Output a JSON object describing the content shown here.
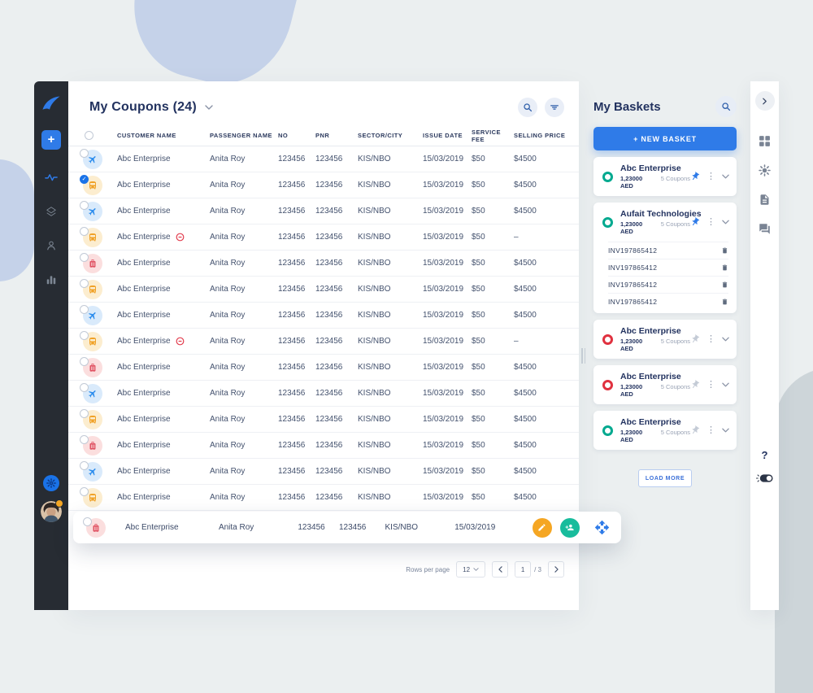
{
  "app": {
    "left_nav": {
      "icons": [
        "logo",
        "add-button",
        "activity-icon",
        "coupons-stack-icon",
        "profile-icon",
        "stats-icon",
        "settings-icon",
        "user-avatar"
      ]
    },
    "right_nav": {
      "icons": [
        "collapse-icon",
        "apps-grid-icon",
        "settings-gear-icon",
        "documents-icon",
        "chat-icon",
        "help-icon",
        "theme-toggle-icon"
      ]
    }
  },
  "colors": {
    "accent_blue": "#2f7be8",
    "teal_status": "#00a98f",
    "red_status": "#e0313f",
    "orange_action": "#f5a623",
    "teal_action": "#18bc9c",
    "dark_sidebar": "#272c33"
  },
  "coupons": {
    "title": "My Coupons (24)",
    "columns": [
      "CUSTOMER NAME",
      "PASSENGER NAME",
      "NO",
      "PNR",
      "SECTOR/CITY",
      "ISSUE DATE",
      "SERVICE FEE",
      "SELLING PRICE"
    ],
    "rows": [
      {
        "icon": "plane-icon",
        "checked": false,
        "blocked": false,
        "customer": "Abc Enterprise",
        "passenger": "Anita Roy",
        "no": "123456",
        "pnr": "123456",
        "sector": "KIS/NBO",
        "issue_date": "15/03/2019",
        "service_fee": "$50",
        "selling_price": "$4500"
      },
      {
        "icon": "bus-icon",
        "checked": true,
        "blocked": false,
        "customer": "Abc Enterprise",
        "passenger": "Anita Roy",
        "no": "123456",
        "pnr": "123456",
        "sector": "KIS/NBO",
        "issue_date": "15/03/2019",
        "service_fee": "$50",
        "selling_price": "$4500"
      },
      {
        "icon": "plane-icon",
        "checked": false,
        "blocked": false,
        "customer": "Abc Enterprise",
        "passenger": "Anita Roy",
        "no": "123456",
        "pnr": "123456",
        "sector": "KIS/NBO",
        "issue_date": "15/03/2019",
        "service_fee": "$50",
        "selling_price": "$4500"
      },
      {
        "icon": "bus-icon",
        "checked": false,
        "blocked": true,
        "customer": "Abc Enterprise",
        "passenger": "Anita Roy",
        "no": "123456",
        "pnr": "123456",
        "sector": "KIS/NBO",
        "issue_date": "15/03/2019",
        "service_fee": "$50",
        "selling_price": "–"
      },
      {
        "icon": "luggage-icon",
        "checked": false,
        "blocked": false,
        "customer": "Abc Enterprise",
        "passenger": "Anita Roy",
        "no": "123456",
        "pnr": "123456",
        "sector": "KIS/NBO",
        "issue_date": "15/03/2019",
        "service_fee": "$50",
        "selling_price": "$4500"
      },
      {
        "icon": "bus-icon",
        "checked": false,
        "blocked": false,
        "customer": "Abc Enterprise",
        "passenger": "Anita Roy",
        "no": "123456",
        "pnr": "123456",
        "sector": "KIS/NBO",
        "issue_date": "15/03/2019",
        "service_fee": "$50",
        "selling_price": "$4500"
      },
      {
        "icon": "plane-icon",
        "checked": false,
        "blocked": false,
        "customer": "Abc Enterprise",
        "passenger": "Anita Roy",
        "no": "123456",
        "pnr": "123456",
        "sector": "KIS/NBO",
        "issue_date": "15/03/2019",
        "service_fee": "$50",
        "selling_price": "$4500"
      },
      {
        "icon": "bus-icon",
        "checked": false,
        "blocked": true,
        "customer": "Abc Enterprise",
        "passenger": "Anita Roy",
        "no": "123456",
        "pnr": "123456",
        "sector": "KIS/NBO",
        "issue_date": "15/03/2019",
        "service_fee": "$50",
        "selling_price": "–"
      },
      {
        "icon": "luggage-icon",
        "checked": false,
        "blocked": false,
        "customer": "Abc Enterprise",
        "passenger": "Anita Roy",
        "no": "123456",
        "pnr": "123456",
        "sector": "KIS/NBO",
        "issue_date": "15/03/2019",
        "service_fee": "$50",
        "selling_price": "$4500"
      },
      {
        "icon": "plane-icon",
        "checked": false,
        "blocked": false,
        "customer": "Abc Enterprise",
        "passenger": "Anita Roy",
        "no": "123456",
        "pnr": "123456",
        "sector": "KIS/NBO",
        "issue_date": "15/03/2019",
        "service_fee": "$50",
        "selling_price": "$4500"
      },
      {
        "icon": "bus-icon",
        "checked": false,
        "blocked": false,
        "customer": "Abc Enterprise",
        "passenger": "Anita Roy",
        "no": "123456",
        "pnr": "123456",
        "sector": "KIS/NBO",
        "issue_date": "15/03/2019",
        "service_fee": "$50",
        "selling_price": "$4500"
      },
      {
        "icon": "luggage-icon",
        "checked": false,
        "blocked": false,
        "customer": "Abc Enterprise",
        "passenger": "Anita Roy",
        "no": "123456",
        "pnr": "123456",
        "sector": "KIS/NBO",
        "issue_date": "15/03/2019",
        "service_fee": "$50",
        "selling_price": "$4500"
      },
      {
        "icon": "plane-icon",
        "checked": false,
        "blocked": false,
        "customer": "Abc Enterprise",
        "passenger": "Anita Roy",
        "no": "123456",
        "pnr": "123456",
        "sector": "KIS/NBO",
        "issue_date": "15/03/2019",
        "service_fee": "$50",
        "selling_price": "$4500"
      },
      {
        "icon": "bus-icon",
        "checked": false,
        "blocked": false,
        "customer": "Abc Enterprise",
        "passenger": "Anita Roy",
        "no": "123456",
        "pnr": "123456",
        "sector": "KIS/NBO",
        "issue_date": "15/03/2019",
        "service_fee": "$50",
        "selling_price": "$4500"
      }
    ],
    "selected_row": {
      "icon": "luggage-icon",
      "customer": "Abc Enterprise",
      "passenger": "Anita Roy",
      "no": "123456",
      "pnr": "123456",
      "sector": "KIS/NBO",
      "issue_date": "15/03/2019"
    },
    "pagination": {
      "label": "Rows per page",
      "per_page": "12",
      "page": "1",
      "of": "/ 3"
    }
  },
  "baskets": {
    "title": "My Baskets",
    "new_basket_label": "+  NEW BASKET",
    "load_more_label": "LOAD MORE",
    "items": [
      {
        "name": "Abc Enterprise",
        "amount": "1,23000 AED",
        "coupons": "5 Coupons",
        "ring": "teal",
        "pinned": true
      },
      {
        "name": "Aufait Technologies",
        "amount": "1,23000 AED",
        "coupons": "5 Coupons",
        "ring": "teal",
        "pinned": true,
        "invoices": [
          "INV197865412",
          "INV197865412",
          "INV197865412",
          "INV197865412"
        ]
      },
      {
        "name": "Abc Enterprise",
        "amount": "1,23000 AED",
        "coupons": "5 Coupons",
        "ring": "red",
        "pinned": false
      },
      {
        "name": "Abc Enterprise",
        "amount": "1,23000 AED",
        "coupons": "5 Coupons",
        "ring": "red",
        "pinned": false
      },
      {
        "name": "Abc Enterprise",
        "amount": "1,23000 AED",
        "coupons": "5 Coupons",
        "ring": "teal",
        "pinned": false
      }
    ]
  }
}
